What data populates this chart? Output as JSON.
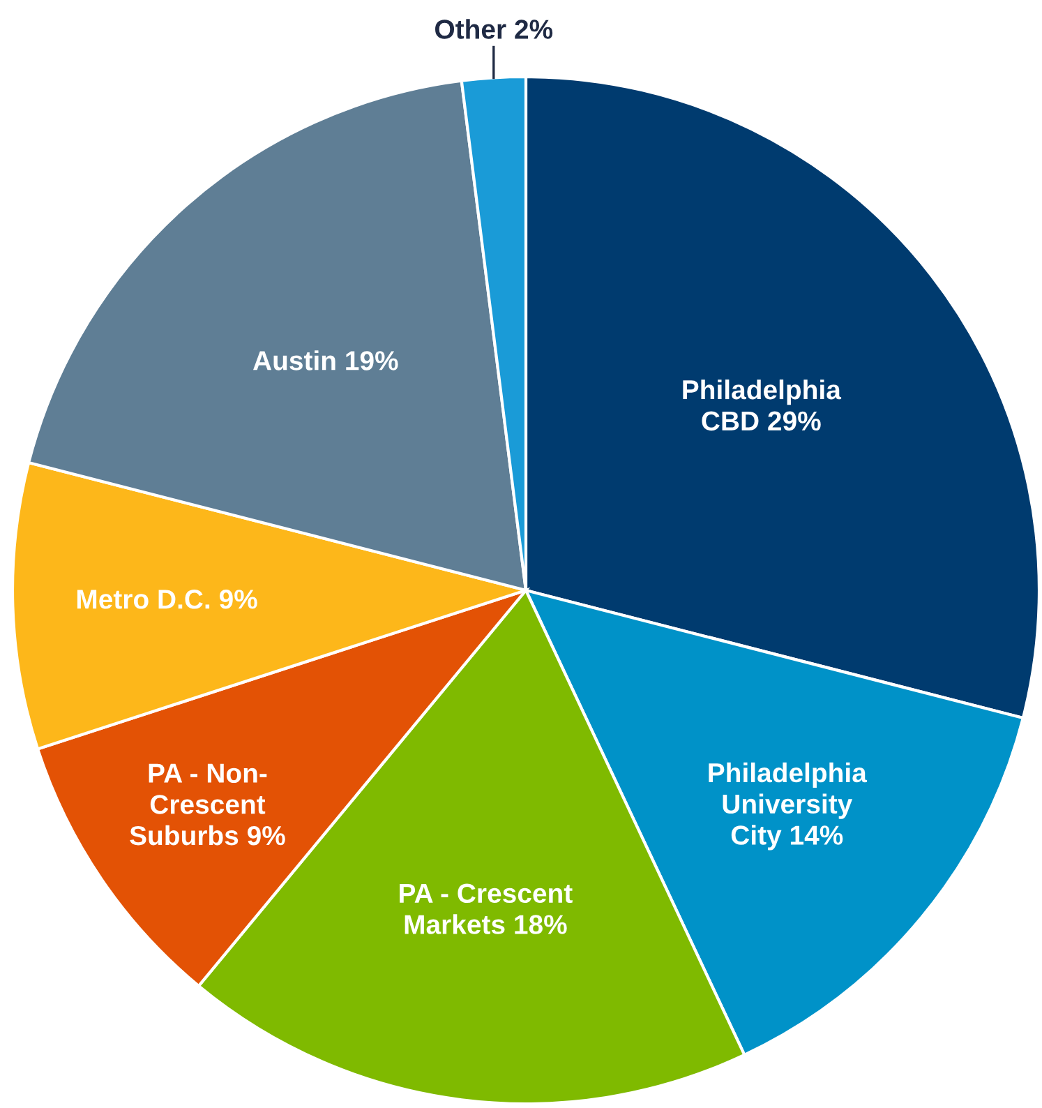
{
  "chart_data": {
    "type": "pie",
    "categories": [
      "Philadelphia\nCBD",
      "Philadelphia\nUniversity\nCity",
      "PA - Crescent\nMarkets",
      "PA - Non-\nCrescent\nSuburbs",
      "Metro D.C.",
      "Austin",
      "Other"
    ],
    "values": [
      29,
      14,
      18,
      9,
      9,
      19,
      2
    ],
    "value_labels": [
      "29%",
      "14%",
      "18%",
      "9%",
      "9%",
      "19%",
      "2%"
    ],
    "colors": [
      "#003b6f",
      "#0092c8",
      "#7fba00",
      "#e35205",
      "#fdb71a",
      "#5f7e95",
      "#1a9bd7"
    ]
  }
}
